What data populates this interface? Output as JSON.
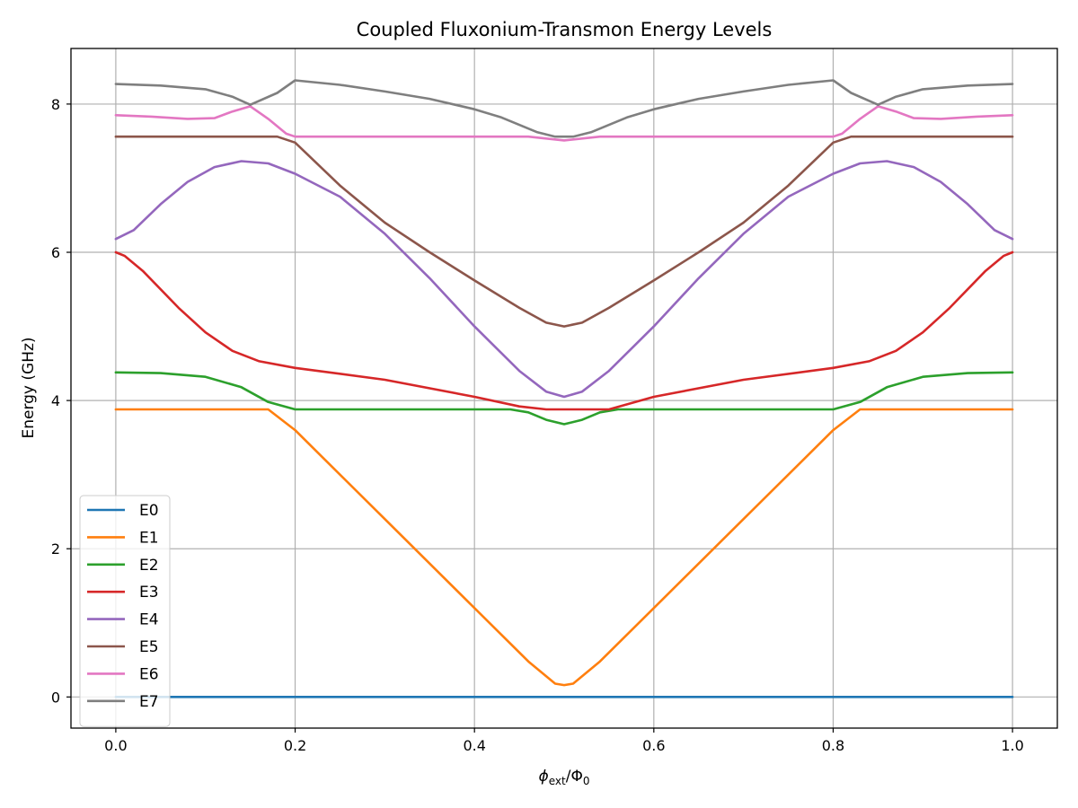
{
  "chart_data": {
    "type": "line",
    "title": "Coupled Fluxonium-Transmon Energy Levels",
    "xlabel": {
      "base": "ϕ",
      "sub": "ext",
      "sep": "/Φ",
      "sub2": "0"
    },
    "ylabel": "Energy (GHz)",
    "xlim": [
      -0.05,
      1.05
    ],
    "ylim": [
      -0.42,
      8.75
    ],
    "xticks": [
      0.0,
      0.2,
      0.4,
      0.6,
      0.8,
      1.0
    ],
    "xtick_labels": [
      "0.0",
      "0.2",
      "0.4",
      "0.6",
      "0.8",
      "1.0"
    ],
    "yticks": [
      0,
      2,
      4,
      6,
      8
    ],
    "ytick_labels": [
      "0",
      "2",
      "4",
      "6",
      "8"
    ],
    "grid": true,
    "legend_position": "lower-left",
    "series": [
      {
        "name": "E0",
        "color": "#1f77b4",
        "points": [
          [
            0,
            0
          ],
          [
            1,
            0
          ]
        ]
      },
      {
        "name": "E1",
        "color": "#ff7f0e",
        "points": [
          [
            0,
            3.88
          ],
          [
            0.17,
            3.88
          ],
          [
            0.2,
            3.6
          ],
          [
            0.3,
            2.4
          ],
          [
            0.4,
            1.2
          ],
          [
            0.46,
            0.48
          ],
          [
            0.49,
            0.18
          ],
          [
            0.5,
            0.16
          ],
          [
            0.51,
            0.18
          ],
          [
            0.54,
            0.48
          ],
          [
            0.6,
            1.2
          ],
          [
            0.7,
            2.4
          ],
          [
            0.8,
            3.6
          ],
          [
            0.83,
            3.88
          ],
          [
            1.0,
            3.88
          ]
        ]
      },
      {
        "name": "E2",
        "color": "#2ca02c",
        "points": [
          [
            0,
            4.38
          ],
          [
            0.05,
            4.37
          ],
          [
            0.1,
            4.32
          ],
          [
            0.14,
            4.18
          ],
          [
            0.17,
            3.98
          ],
          [
            0.2,
            3.88
          ],
          [
            0.44,
            3.88
          ],
          [
            0.46,
            3.84
          ],
          [
            0.48,
            3.74
          ],
          [
            0.5,
            3.68
          ],
          [
            0.52,
            3.74
          ],
          [
            0.54,
            3.84
          ],
          [
            0.56,
            3.88
          ],
          [
            0.8,
            3.88
          ],
          [
            0.83,
            3.98
          ],
          [
            0.86,
            4.18
          ],
          [
            0.9,
            4.32
          ],
          [
            0.95,
            4.37
          ],
          [
            1.0,
            4.38
          ]
        ]
      },
      {
        "name": "E3",
        "color": "#d62728",
        "points": [
          [
            0,
            6.0
          ],
          [
            0.01,
            5.95
          ],
          [
            0.03,
            5.75
          ],
          [
            0.07,
            5.25
          ],
          [
            0.1,
            4.92
          ],
          [
            0.13,
            4.67
          ],
          [
            0.16,
            4.53
          ],
          [
            0.2,
            4.44
          ],
          [
            0.3,
            4.28
          ],
          [
            0.4,
            4.05
          ],
          [
            0.45,
            3.92
          ],
          [
            0.48,
            3.88
          ],
          [
            0.55,
            3.88
          ],
          [
            0.6,
            4.05
          ],
          [
            0.7,
            4.28
          ],
          [
            0.8,
            4.44
          ],
          [
            0.84,
            4.53
          ],
          [
            0.87,
            4.67
          ],
          [
            0.9,
            4.92
          ],
          [
            0.93,
            5.25
          ],
          [
            0.97,
            5.75
          ],
          [
            0.99,
            5.95
          ],
          [
            1.0,
            6.0
          ]
        ]
      },
      {
        "name": "E4",
        "color": "#9467bd",
        "points": [
          [
            0,
            6.18
          ],
          [
            0.02,
            6.3
          ],
          [
            0.05,
            6.65
          ],
          [
            0.08,
            6.95
          ],
          [
            0.11,
            7.15
          ],
          [
            0.14,
            7.23
          ],
          [
            0.17,
            7.2
          ],
          [
            0.2,
            7.06
          ],
          [
            0.25,
            6.75
          ],
          [
            0.3,
            6.25
          ],
          [
            0.35,
            5.65
          ],
          [
            0.4,
            5.0
          ],
          [
            0.45,
            4.4
          ],
          [
            0.48,
            4.12
          ],
          [
            0.5,
            4.05
          ],
          [
            0.52,
            4.12
          ],
          [
            0.55,
            4.4
          ],
          [
            0.6,
            5.0
          ],
          [
            0.65,
            5.65
          ],
          [
            0.7,
            6.25
          ],
          [
            0.75,
            6.75
          ],
          [
            0.8,
            7.06
          ],
          [
            0.83,
            7.2
          ],
          [
            0.86,
            7.23
          ],
          [
            0.89,
            7.15
          ],
          [
            0.92,
            6.95
          ],
          [
            0.95,
            6.65
          ],
          [
            0.98,
            6.3
          ],
          [
            1.0,
            6.18
          ]
        ]
      },
      {
        "name": "E5",
        "color": "#8c564b",
        "points": [
          [
            0,
            7.56
          ],
          [
            0.18,
            7.56
          ],
          [
            0.2,
            7.48
          ],
          [
            0.25,
            6.9
          ],
          [
            0.3,
            6.4
          ],
          [
            0.35,
            6.0
          ],
          [
            0.4,
            5.62
          ],
          [
            0.45,
            5.25
          ],
          [
            0.48,
            5.05
          ],
          [
            0.5,
            5.0
          ],
          [
            0.52,
            5.05
          ],
          [
            0.55,
            5.25
          ],
          [
            0.6,
            5.62
          ],
          [
            0.65,
            6.0
          ],
          [
            0.7,
            6.4
          ],
          [
            0.75,
            6.9
          ],
          [
            0.8,
            7.48
          ],
          [
            0.82,
            7.56
          ],
          [
            1.0,
            7.56
          ]
        ]
      },
      {
        "name": "E6",
        "color": "#e377c2",
        "points": [
          [
            0,
            7.85
          ],
          [
            0.04,
            7.83
          ],
          [
            0.08,
            7.8
          ],
          [
            0.11,
            7.81
          ],
          [
            0.13,
            7.9
          ],
          [
            0.15,
            7.97
          ],
          [
            0.17,
            7.8
          ],
          [
            0.19,
            7.6
          ],
          [
            0.2,
            7.56
          ],
          [
            0.46,
            7.56
          ],
          [
            0.5,
            7.51
          ],
          [
            0.54,
            7.56
          ],
          [
            0.8,
            7.56
          ],
          [
            0.81,
            7.6
          ],
          [
            0.83,
            7.8
          ],
          [
            0.85,
            7.97
          ],
          [
            0.87,
            7.9
          ],
          [
            0.89,
            7.81
          ],
          [
            0.92,
            7.8
          ],
          [
            0.96,
            7.83
          ],
          [
            1.0,
            7.85
          ]
        ]
      },
      {
        "name": "E7",
        "color": "#7f7f7f",
        "points": [
          [
            0,
            8.27
          ],
          [
            0.05,
            8.25
          ],
          [
            0.1,
            8.2
          ],
          [
            0.13,
            8.1
          ],
          [
            0.15,
            7.99
          ],
          [
            0.18,
            8.15
          ],
          [
            0.2,
            8.32
          ],
          [
            0.25,
            8.26
          ],
          [
            0.3,
            8.17
          ],
          [
            0.35,
            8.07
          ],
          [
            0.4,
            7.93
          ],
          [
            0.43,
            7.82
          ],
          [
            0.47,
            7.62
          ],
          [
            0.49,
            7.56
          ],
          [
            0.5,
            7.56
          ],
          [
            0.51,
            7.56
          ],
          [
            0.53,
            7.62
          ],
          [
            0.57,
            7.82
          ],
          [
            0.6,
            7.93
          ],
          [
            0.65,
            8.07
          ],
          [
            0.7,
            8.17
          ],
          [
            0.75,
            8.26
          ],
          [
            0.8,
            8.32
          ],
          [
            0.82,
            8.15
          ],
          [
            0.85,
            7.99
          ],
          [
            0.87,
            8.1
          ],
          [
            0.9,
            8.2
          ],
          [
            0.95,
            8.25
          ],
          [
            1.0,
            8.27
          ]
        ]
      }
    ]
  }
}
